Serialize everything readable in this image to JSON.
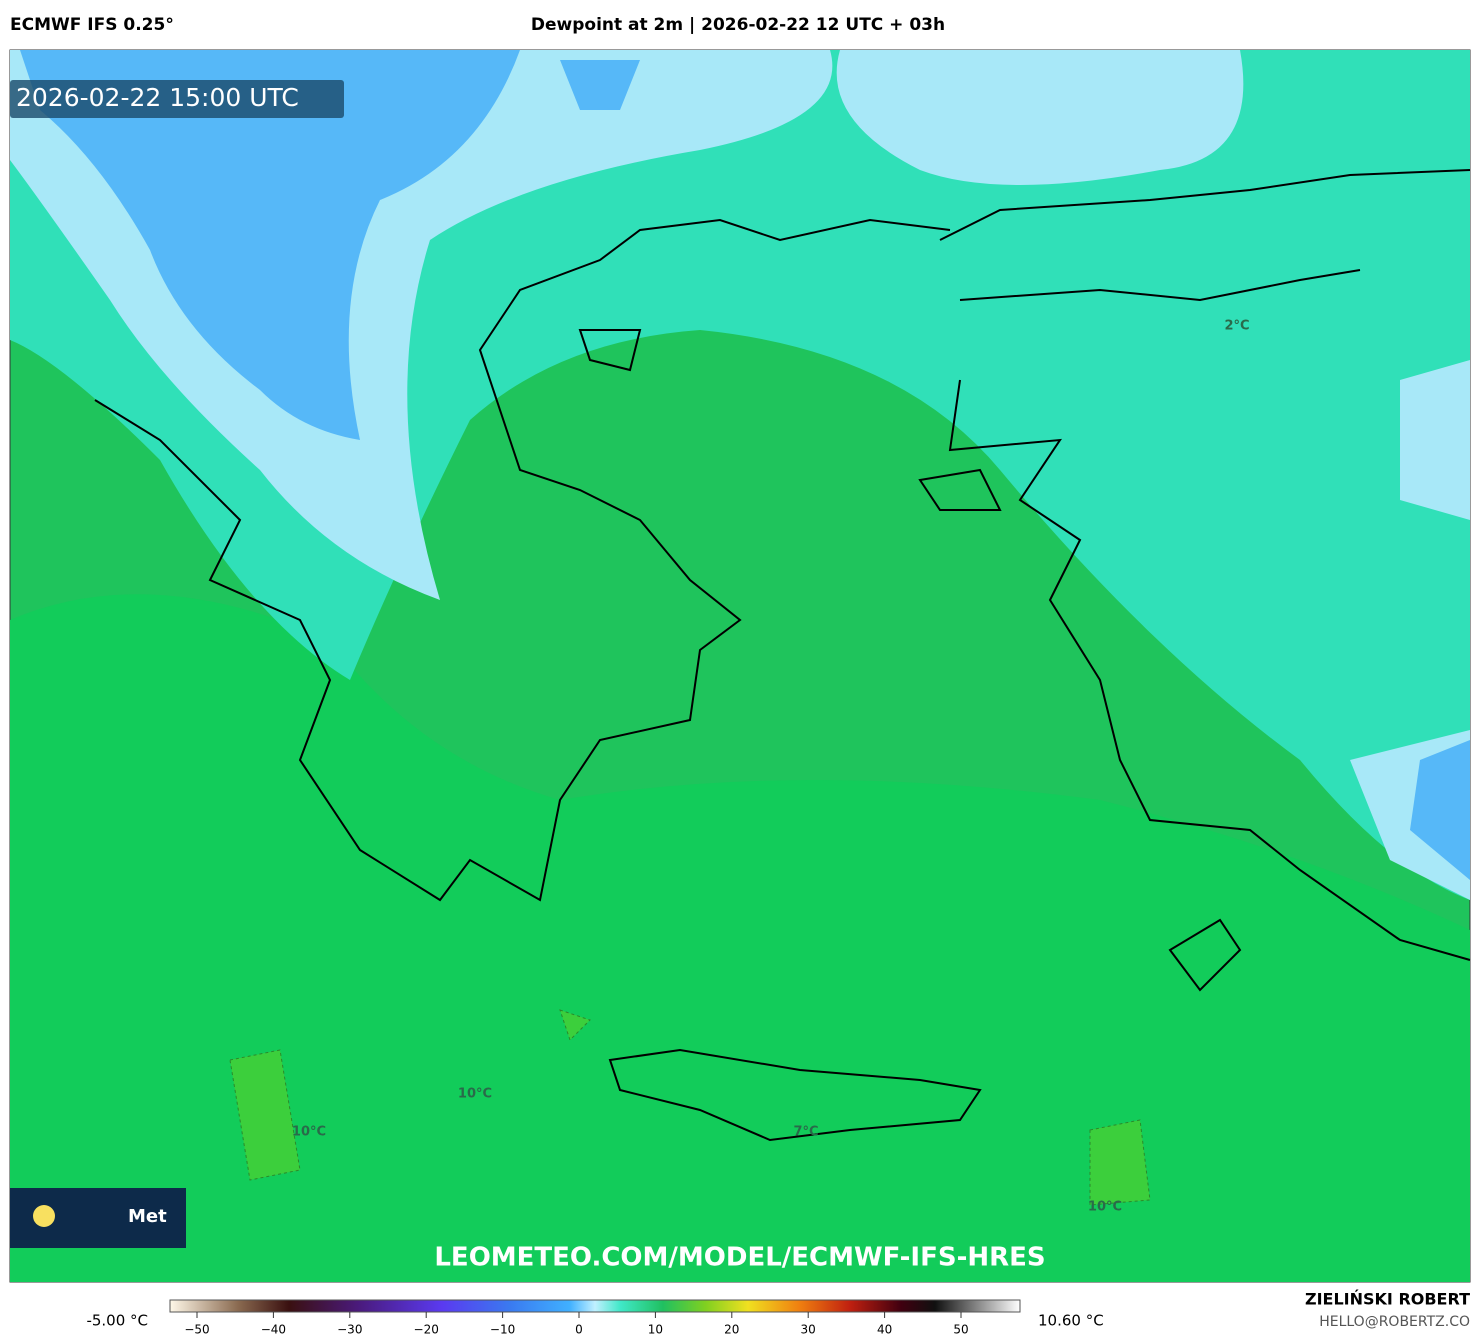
{
  "header": {
    "left": "ECMWF IFS 0.25°",
    "center": "Dewpoint at 2m | 2026-02-22 12 UTC + 03h"
  },
  "timestamp": "2026-02-22 15:00 UTC",
  "map_labels": [
    "2°C",
    "10°C",
    "10°C",
    "7°C",
    "10°C"
  ],
  "logo_text": "Met",
  "watermark": "LEOMETEO.COM/MODEL/ECMWF-IFS-HRES",
  "colorbar": {
    "min_label": "-5.00 °C",
    "max_label": "10.60 °C",
    "ticks": [
      {
        "value": -50,
        "label": "−50"
      },
      {
        "value": -40,
        "label": "−40"
      },
      {
        "value": -30,
        "label": "−30"
      },
      {
        "value": -20,
        "label": "−20"
      },
      {
        "value": -10,
        "label": "−10"
      },
      0,
      10,
      20,
      30,
      40,
      50
    ]
  },
  "credits": {
    "name": "ZIELIŃSKI ROBERT",
    "email": "HELLO@ROBERTZ.CO"
  }
}
